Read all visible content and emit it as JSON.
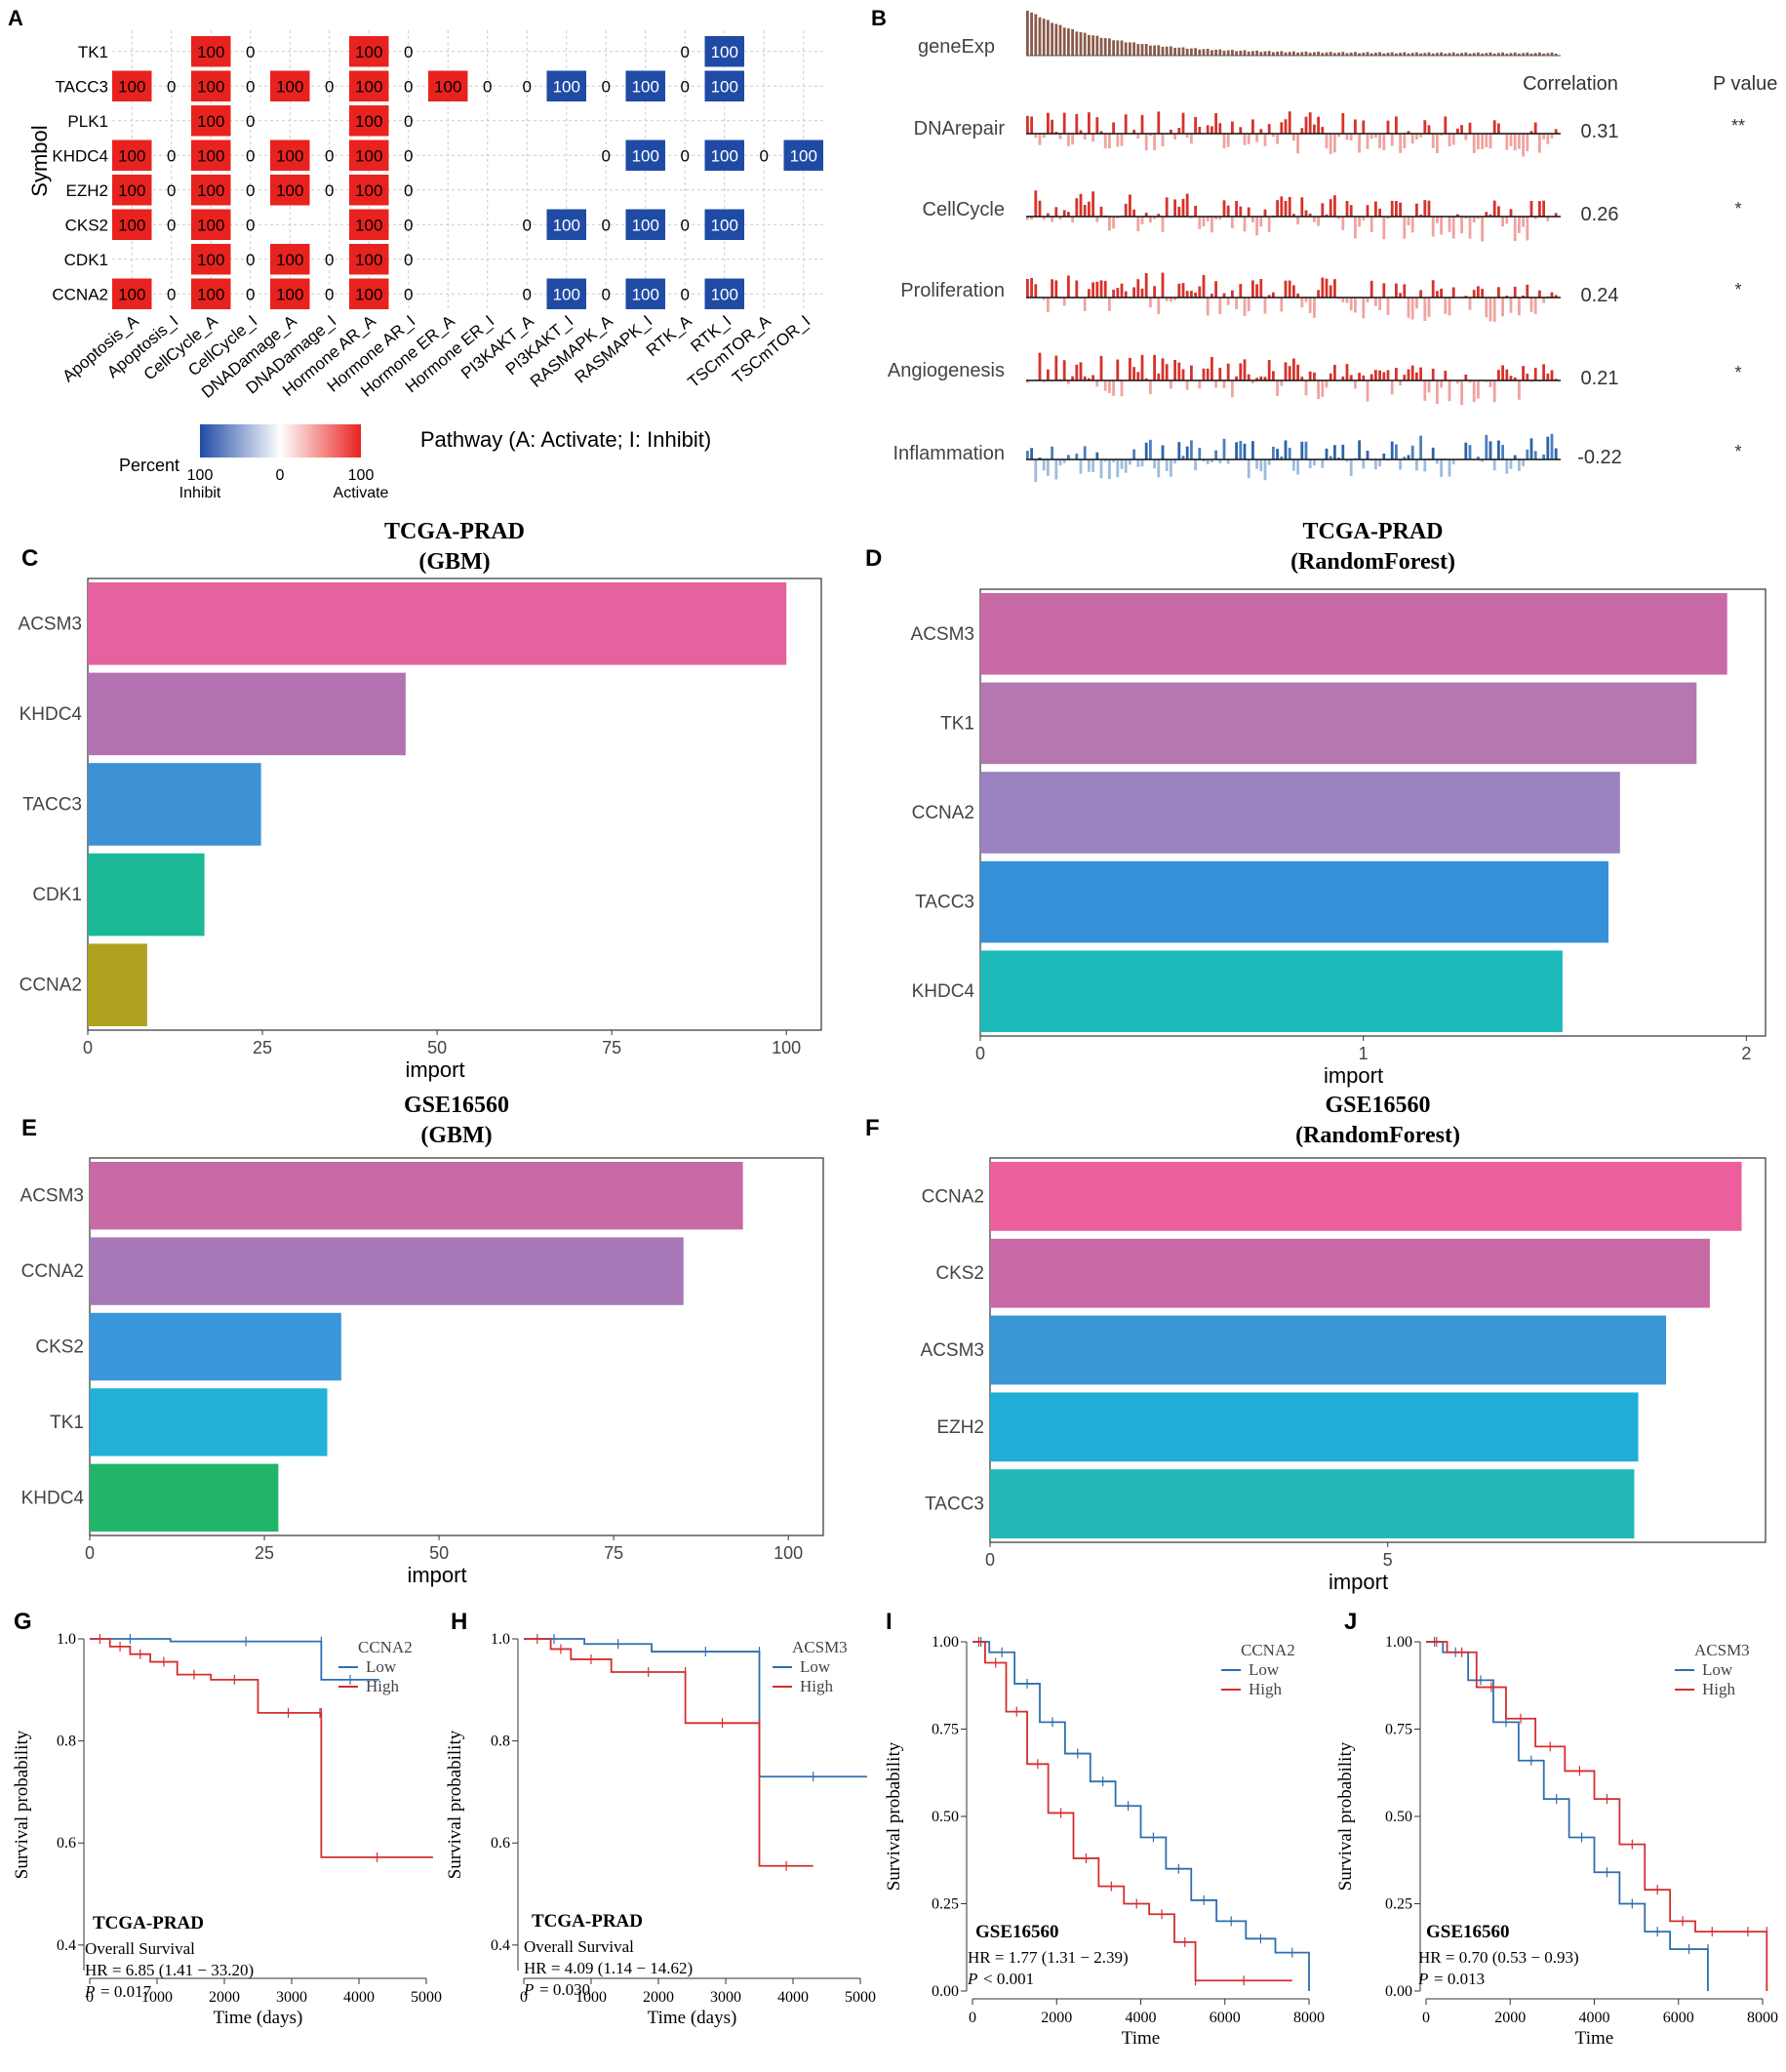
{
  "panel_letters": {
    "A": "A",
    "B": "B",
    "C": "C",
    "D": "D",
    "E": "E",
    "F": "F",
    "G": "G",
    "H": "H",
    "I": "I",
    "J": "J"
  },
  "colors": {
    "activate": "#e8231f",
    "inhibit": "#1f4ba5",
    "grid": "#cccccc"
  },
  "chart_data": [
    {
      "id": "A",
      "type": "heatmap",
      "ylabel": "Symbol",
      "xlabel": "Pathway (A: Activate; I: Inhibit)",
      "rows": [
        "TK1",
        "TACC3",
        "PLK1",
        "KHDC4",
        "EZH2",
        "CKS2",
        "CDK1",
        "CCNA2"
      ],
      "columns": [
        "Apoptosis_A",
        "Apoptosis_I",
        "CellCycle_A",
        "CellCycle_I",
        "DNADamage_A",
        "DNADamage_I",
        "Hormone AR_A",
        "Hormone AR_I",
        "Hormone ER_A",
        "Hormone ER_I",
        "PI3KAKT_A",
        "PI3KAKT_I",
        "RASMAPK_A",
        "RASMAPK_I",
        "RTK_A",
        "RTK_I",
        "TSCmTOR_A",
        "TSCmTOR_I"
      ],
      "values": [
        [
          null,
          null,
          100,
          0,
          null,
          null,
          100,
          0,
          null,
          null,
          null,
          null,
          null,
          null,
          0,
          -100,
          null,
          null
        ],
        [
          100,
          0,
          100,
          0,
          100,
          0,
          100,
          0,
          100,
          0,
          0,
          -100,
          0,
          -100,
          0,
          -100,
          null,
          null
        ],
        [
          null,
          null,
          100,
          0,
          null,
          null,
          100,
          0,
          null,
          null,
          null,
          null,
          null,
          null,
          null,
          null,
          null,
          null
        ],
        [
          100,
          0,
          100,
          0,
          100,
          0,
          100,
          0,
          null,
          null,
          null,
          null,
          0,
          -100,
          0,
          -100,
          0,
          -100
        ],
        [
          100,
          0,
          100,
          0,
          100,
          0,
          100,
          0,
          null,
          null,
          null,
          null,
          null,
          null,
          null,
          null,
          null,
          null
        ],
        [
          100,
          0,
          100,
          0,
          null,
          null,
          100,
          0,
          null,
          null,
          0,
          -100,
          0,
          -100,
          0,
          -100,
          null,
          null
        ],
        [
          null,
          null,
          100,
          0,
          100,
          0,
          100,
          0,
          null,
          null,
          null,
          null,
          null,
          null,
          null,
          null,
          null,
          null
        ],
        [
          100,
          0,
          100,
          0,
          100,
          0,
          100,
          0,
          null,
          null,
          0,
          -100,
          0,
          -100,
          0,
          -100,
          null,
          null
        ]
      ],
      "legend": {
        "title": "Percent",
        "ticks": [
          "100",
          "0",
          "100"
        ],
        "tick_sub": [
          "Inhibit",
          "",
          "Activate"
        ]
      }
    },
    {
      "id": "B",
      "type": "bar",
      "title_rows": [
        "geneExp",
        "DNArepair",
        "CellCycle",
        "Proliferation",
        "Angiogenesis",
        "Inflammation"
      ],
      "header_correlation": "Correlation",
      "header_pvalue": "P value",
      "correlations": [
        "0.31",
        "0.26",
        "0.24",
        "0.21",
        "-0.22"
      ],
      "pvalues": [
        "**",
        "*",
        "*",
        "*",
        "*"
      ],
      "corr_numeric": [
        0.31,
        0.26,
        0.24,
        0.21,
        -0.22
      ]
    },
    {
      "id": "C",
      "type": "bar",
      "title": "TCGA-PRAD",
      "subtitle": "(GBM)",
      "xlabel": "import",
      "categories": [
        "ACSM3",
        "KHDC4",
        "TACC3",
        "CDK1",
        "CCNA2"
      ],
      "values": [
        100,
        45.5,
        24.8,
        16.7,
        8.5
      ],
      "xlim": [
        0,
        105
      ],
      "ticks": [
        0,
        25,
        50,
        75,
        100
      ],
      "tick_labels": [
        "0",
        "25",
        "50",
        "75",
        "100"
      ],
      "colors": [
        "#e5629f",
        "#b372b1",
        "#3b91d4",
        "#1cb998",
        "#b0a21f"
      ]
    },
    {
      "id": "D",
      "type": "bar",
      "title": "TCGA-PRAD",
      "subtitle": "(RandomForest)",
      "xlabel": "import",
      "categories": [
        "ACSM3",
        "TK1",
        "CCNA2",
        "TACC3",
        "KHDC4"
      ],
      "values": [
        1.95,
        1.87,
        1.67,
        1.64,
        1.52
      ],
      "xlim": [
        0,
        2.05
      ],
      "ticks": [
        0,
        1,
        2
      ],
      "tick_labels": [
        "0",
        "1",
        "2"
      ],
      "colors": [
        "#c86aa6",
        "#b477b0",
        "#9b82c0",
        "#3690d8",
        "#1db9b9"
      ]
    },
    {
      "id": "E",
      "type": "bar",
      "title": "GSE16560",
      "subtitle": "(GBM)",
      "xlabel": "import",
      "categories": [
        "ACSM3",
        "CCNA2",
        "CKS2",
        "TK1",
        "KHDC4"
      ],
      "values": [
        93.5,
        85,
        36,
        34,
        27
      ],
      "xlim": [
        0,
        105
      ],
      "ticks": [
        0,
        25,
        50,
        75,
        100
      ],
      "tick_labels": [
        "0",
        "25",
        "50",
        "75",
        "100"
      ],
      "colors": [
        "#c86aa6",
        "#a777b8",
        "#3b97dc",
        "#22b0d6",
        "#22b56a"
      ]
    },
    {
      "id": "F",
      "type": "bar",
      "title": "GSE16560",
      "subtitle": "(RandomForest)",
      "xlabel": "import",
      "categories": [
        "CCNA2",
        "CKS2",
        "ACSM3",
        "EZH2",
        "TACC3"
      ],
      "values": [
        9.45,
        9.05,
        8.5,
        8.15,
        8.1
      ],
      "xlim": [
        0,
        9.75
      ],
      "ticks": [
        0,
        5
      ],
      "tick_labels": [
        "0",
        "5"
      ],
      "colors": [
        "#ec5f9c",
        "#c86aa6",
        "#3a96d4",
        "#21add8",
        "#22b8b6"
      ]
    },
    {
      "id": "G",
      "type": "line",
      "legend_title": "CCNA2",
      "legend": [
        "Low",
        "High"
      ],
      "ylabel": "Survival probability",
      "xlabel": "Time (days)",
      "xticks": [
        "0",
        "1000",
        "2000",
        "3000",
        "4000",
        "5000"
      ],
      "yticks": [
        "1.0",
        "0.8",
        "0.6",
        "0.4"
      ],
      "xlim": [
        0,
        5000
      ],
      "ylim": [
        0.35,
        1.0
      ],
      "annotation": {
        "cohort": "TCGA-PRAD",
        "line1": "Overall Survival",
        "hr": "HR = 6.85  (1.41 − 33.20)",
        "p_label": "P",
        "p_value": "= 0.017"
      },
      "series": [
        {
          "name": "Low",
          "color": "#2f6eb0",
          "x": [
            0,
            1200,
            3440,
            3440,
            4300
          ],
          "y": [
            1.0,
            0.995,
            0.995,
            0.92,
            0.92
          ]
        },
        {
          "name": "High",
          "color": "#d32f2f",
          "x": [
            0,
            300,
            600,
            900,
            1300,
            1800,
            2500,
            3400,
            3440,
            3440,
            5100
          ],
          "y": [
            1.0,
            0.985,
            0.97,
            0.955,
            0.93,
            0.92,
            0.855,
            0.855,
            0.855,
            0.572,
            0.572
          ]
        }
      ]
    },
    {
      "id": "H",
      "type": "line",
      "legend_title": "ACSM3",
      "legend": [
        "Low",
        "High"
      ],
      "ylabel": "Survival probability",
      "xlabel": "Time (days)",
      "xticks": [
        "0",
        "1000",
        "2000",
        "3000",
        "4000",
        "5000"
      ],
      "yticks": [
        "1.0",
        "0.8",
        "0.6",
        "0.4"
      ],
      "xlim": [
        0,
        5000
      ],
      "ylim": [
        0.35,
        1.0
      ],
      "annotation": {
        "cohort": "TCGA-PRAD",
        "line1": "Overall Survival",
        "hr": "HR = 4.09  (1.14 − 14.62)",
        "p_label": "P",
        "p_value": "= 0.030"
      },
      "series": [
        {
          "name": "Low",
          "color": "#2f6eb0",
          "x": [
            0,
            900,
            1900,
            3500,
            3500,
            5100
          ],
          "y": [
            1.0,
            0.99,
            0.975,
            0.975,
            0.73,
            0.73
          ]
        },
        {
          "name": "High",
          "color": "#d32f2f",
          "x": [
            0,
            400,
            700,
            1300,
            2400,
            2400,
            3500,
            3500,
            4300
          ],
          "y": [
            1.0,
            0.98,
            0.96,
            0.935,
            0.935,
            0.835,
            0.835,
            0.555,
            0.555
          ]
        }
      ]
    },
    {
      "id": "I",
      "type": "line",
      "legend_title": "CCNA2",
      "legend": [
        "Low",
        "High"
      ],
      "ylabel": "Survival probability",
      "xlabel": "Time",
      "xticks": [
        "0",
        "2000",
        "4000",
        "6000",
        "8000"
      ],
      "yticks": [
        "1.00",
        "0.75",
        "0.50",
        "0.25",
        "0.00"
      ],
      "xlim": [
        0,
        8000
      ],
      "ylim": [
        0,
        1.0
      ],
      "annotation": {
        "cohort": "GSE16560",
        "hr": "HR = 1.77  (1.31 − 2.39)",
        "p_label": "P",
        "p_value": "< 0.001"
      },
      "series": [
        {
          "name": "Low",
          "color": "#2f6eb0",
          "x": [
            0,
            400,
            1000,
            1600,
            2200,
            2800,
            3400,
            4000,
            4600,
            5200,
            5800,
            6500,
            7200,
            8000
          ],
          "y": [
            1.0,
            0.97,
            0.88,
            0.77,
            0.68,
            0.6,
            0.53,
            0.44,
            0.35,
            0.26,
            0.2,
            0.15,
            0.11,
            0.0
          ]
        },
        {
          "name": "High",
          "color": "#d32f2f",
          "x": [
            0,
            300,
            800,
            1300,
            1800,
            2400,
            3000,
            3600,
            4200,
            4800,
            5300,
            5300,
            7600
          ],
          "y": [
            1.0,
            0.94,
            0.8,
            0.65,
            0.51,
            0.38,
            0.3,
            0.25,
            0.22,
            0.14,
            0.03,
            0.03,
            0.03
          ]
        }
      ]
    },
    {
      "id": "J",
      "type": "line",
      "legend_title": "ACSM3",
      "legend": [
        "Low",
        "High"
      ],
      "ylabel": "Survival probability",
      "xlabel": "Time",
      "xticks": [
        "0",
        "2000",
        "4000",
        "6000",
        "8000"
      ],
      "yticks": [
        "1.00",
        "0.75",
        "0.50",
        "0.25",
        "0.00"
      ],
      "xlim": [
        0,
        8000
      ],
      "ylim": [
        0,
        1.0
      ],
      "annotation": {
        "cohort": "GSE16560",
        "hr": "HR = 0.70  (0.53 − 0.93)",
        "p_label": "P",
        "p_value": "= 0.013"
      },
      "series": [
        {
          "name": "Low",
          "color": "#2f6eb0",
          "x": [
            0,
            400,
            1000,
            1600,
            2200,
            2800,
            3400,
            4000,
            4600,
            5200,
            5800,
            6700,
            6700
          ],
          "y": [
            1.0,
            0.97,
            0.89,
            0.77,
            0.66,
            0.55,
            0.44,
            0.34,
            0.25,
            0.17,
            0.12,
            0.12,
            0.0
          ]
        },
        {
          "name": "High",
          "color": "#d32f2f",
          "x": [
            0,
            500,
            1200,
            1900,
            2600,
            3300,
            4000,
            4600,
            5200,
            5800,
            6400,
            7200,
            8100,
            8100
          ],
          "y": [
            1.0,
            0.97,
            0.87,
            0.78,
            0.7,
            0.63,
            0.55,
            0.42,
            0.29,
            0.2,
            0.17,
            0.17,
            0.17,
            0.0
          ]
        }
      ]
    }
  ]
}
